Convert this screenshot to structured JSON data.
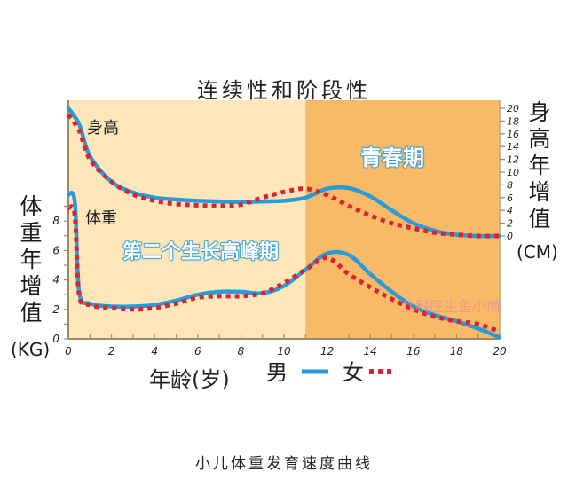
{
  "title": "连续性和阶段性",
  "caption": "小儿体重发育速度曲线",
  "left_axis": {
    "label_chars": [
      "体",
      "重",
      "年",
      "增",
      "值"
    ],
    "unit": "(KG)"
  },
  "right_axis": {
    "label_chars": [
      "身",
      "高",
      "年",
      "增",
      "值"
    ],
    "unit": "(CM)"
  },
  "x_axis_label": "年龄(岁)",
  "curve_labels": {
    "height": "身高",
    "weight": "体重"
  },
  "phase_labels": {
    "second_growth_peak": "第二个生长高峰期",
    "puberty": "青春期"
  },
  "legend": {
    "male": "男",
    "female": "女"
  },
  "watermark": "儿科医生鱼小南",
  "colors": {
    "male": "#2a9ad8",
    "female": "#dd2233",
    "childhood_bg": "#fde6b8",
    "puberty_bg": "#f8ba66",
    "axis": "#9a8a6a"
  },
  "chart_data": {
    "type": "line",
    "title": "连续性和阶段性",
    "subtitle": "小儿体重发育速度曲线",
    "xlabel": "年龄(岁)",
    "ylabel_left": "体重年增值 (KG)",
    "ylabel_right": "身高年增值 (CM)",
    "x_ticks": [
      0,
      2,
      4,
      6,
      8,
      10,
      12,
      14,
      16,
      18,
      20
    ],
    "xlim": [
      0,
      20
    ],
    "ylim_left": [
      0,
      9
    ],
    "y_ticks_left": [
      0,
      2,
      4,
      6,
      8
    ],
    "ylim_right": [
      0,
      20
    ],
    "y_ticks_right": [
      0,
      2,
      4,
      6,
      8,
      10,
      12,
      14,
      16,
      18,
      20
    ],
    "regions": [
      {
        "label": "第二个生长高峰期",
        "x_range": [
          0,
          11
        ]
      },
      {
        "label": "青春期",
        "x_range": [
          11,
          20
        ]
      }
    ],
    "legend": [
      {
        "name": "男",
        "style": "solid",
        "color": "#2a9ad8"
      },
      {
        "name": "女",
        "style": "dotted",
        "color": "#dd2233"
      }
    ],
    "series": [
      {
        "name": "身高 男",
        "axis": "right",
        "x": [
          0,
          0.5,
          1,
          2,
          3,
          4,
          5,
          6,
          7,
          8,
          9,
          10,
          11,
          12,
          13,
          14,
          15,
          16,
          17,
          18,
          19,
          20
        ],
        "values": [
          20,
          17.5,
          12.5,
          8.5,
          6.8,
          6.0,
          5.7,
          5.5,
          5.4,
          5.3,
          5.4,
          5.5,
          6.0,
          7.4,
          7.5,
          6.2,
          4.0,
          2.0,
          0.8,
          0.2,
          0,
          0
        ]
      },
      {
        "name": "身高 女",
        "axis": "right",
        "x": [
          0,
          0.5,
          1,
          2,
          3,
          4,
          5,
          6,
          7,
          8,
          9,
          10,
          11,
          12,
          13,
          14,
          15,
          16,
          17,
          18,
          19,
          20
        ],
        "values": [
          19,
          16.5,
          12,
          8.5,
          6.5,
          5.5,
          5.0,
          4.8,
          4.7,
          4.9,
          6.0,
          6.9,
          7.4,
          6.4,
          4.7,
          3.2,
          2.0,
          1.2,
          0.5,
          0.2,
          0,
          0
        ]
      },
      {
        "name": "体重 男",
        "axis": "left",
        "x": [
          0,
          0.3,
          0.5,
          1,
          2,
          3,
          4,
          5,
          6,
          7,
          8,
          9,
          10,
          11,
          12,
          13,
          14,
          15,
          16,
          17,
          18,
          19,
          20
        ],
        "values": [
          9.8,
          9.3,
          3.2,
          2.4,
          2.2,
          2.2,
          2.3,
          2.6,
          3.0,
          3.2,
          3.2,
          3.1,
          3.6,
          4.7,
          5.8,
          5.7,
          4.4,
          3.2,
          2.2,
          1.6,
          1.2,
          0.7,
          0.1
        ]
      },
      {
        "name": "体重 女",
        "axis": "left",
        "x": [
          0,
          0.3,
          0.5,
          1,
          2,
          3,
          4,
          5,
          6,
          7,
          8,
          9,
          10,
          11,
          12,
          13,
          14,
          15,
          16,
          17,
          18,
          19,
          20
        ],
        "values": [
          8.9,
          8.4,
          3.0,
          2.3,
          2.1,
          2.0,
          2.1,
          2.4,
          2.8,
          2.9,
          2.9,
          3.1,
          3.8,
          4.7,
          5.5,
          4.4,
          3.5,
          2.7,
          2.0,
          1.5,
          1.2,
          1.0,
          0.5
        ]
      }
    ]
  }
}
